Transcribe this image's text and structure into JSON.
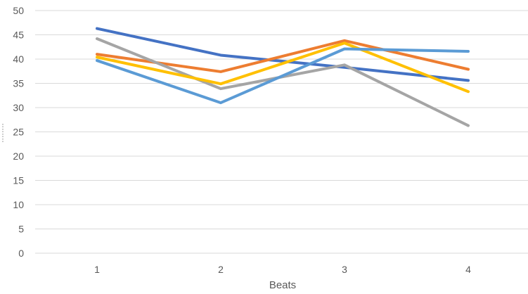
{
  "chart_data": {
    "type": "line",
    "title": "",
    "xlabel": "Beats",
    "ylabel": "",
    "x": [
      "1",
      "2",
      "3",
      "4"
    ],
    "ylim": [
      0,
      50
    ],
    "ytick_step": 5,
    "yticks": [
      "0",
      "5",
      "10",
      "15",
      "20",
      "25",
      "30",
      "35",
      "40",
      "45",
      "50"
    ],
    "grid": true,
    "legend": "none",
    "series": [
      {
        "color": "#4472C4",
        "values": [
          46.3,
          40.8,
          38.3,
          35.6
        ]
      },
      {
        "color": "#ED7D31",
        "values": [
          41.0,
          37.4,
          43.8,
          37.9
        ]
      },
      {
        "color": "#A5A5A5",
        "values": [
          44.2,
          33.9,
          38.8,
          26.3
        ]
      },
      {
        "color": "#FFC000",
        "values": [
          40.4,
          34.9,
          43.3,
          33.3
        ]
      },
      {
        "color": "#5B9BD5",
        "values": [
          39.7,
          31.0,
          42.1,
          41.6
        ]
      }
    ]
  }
}
